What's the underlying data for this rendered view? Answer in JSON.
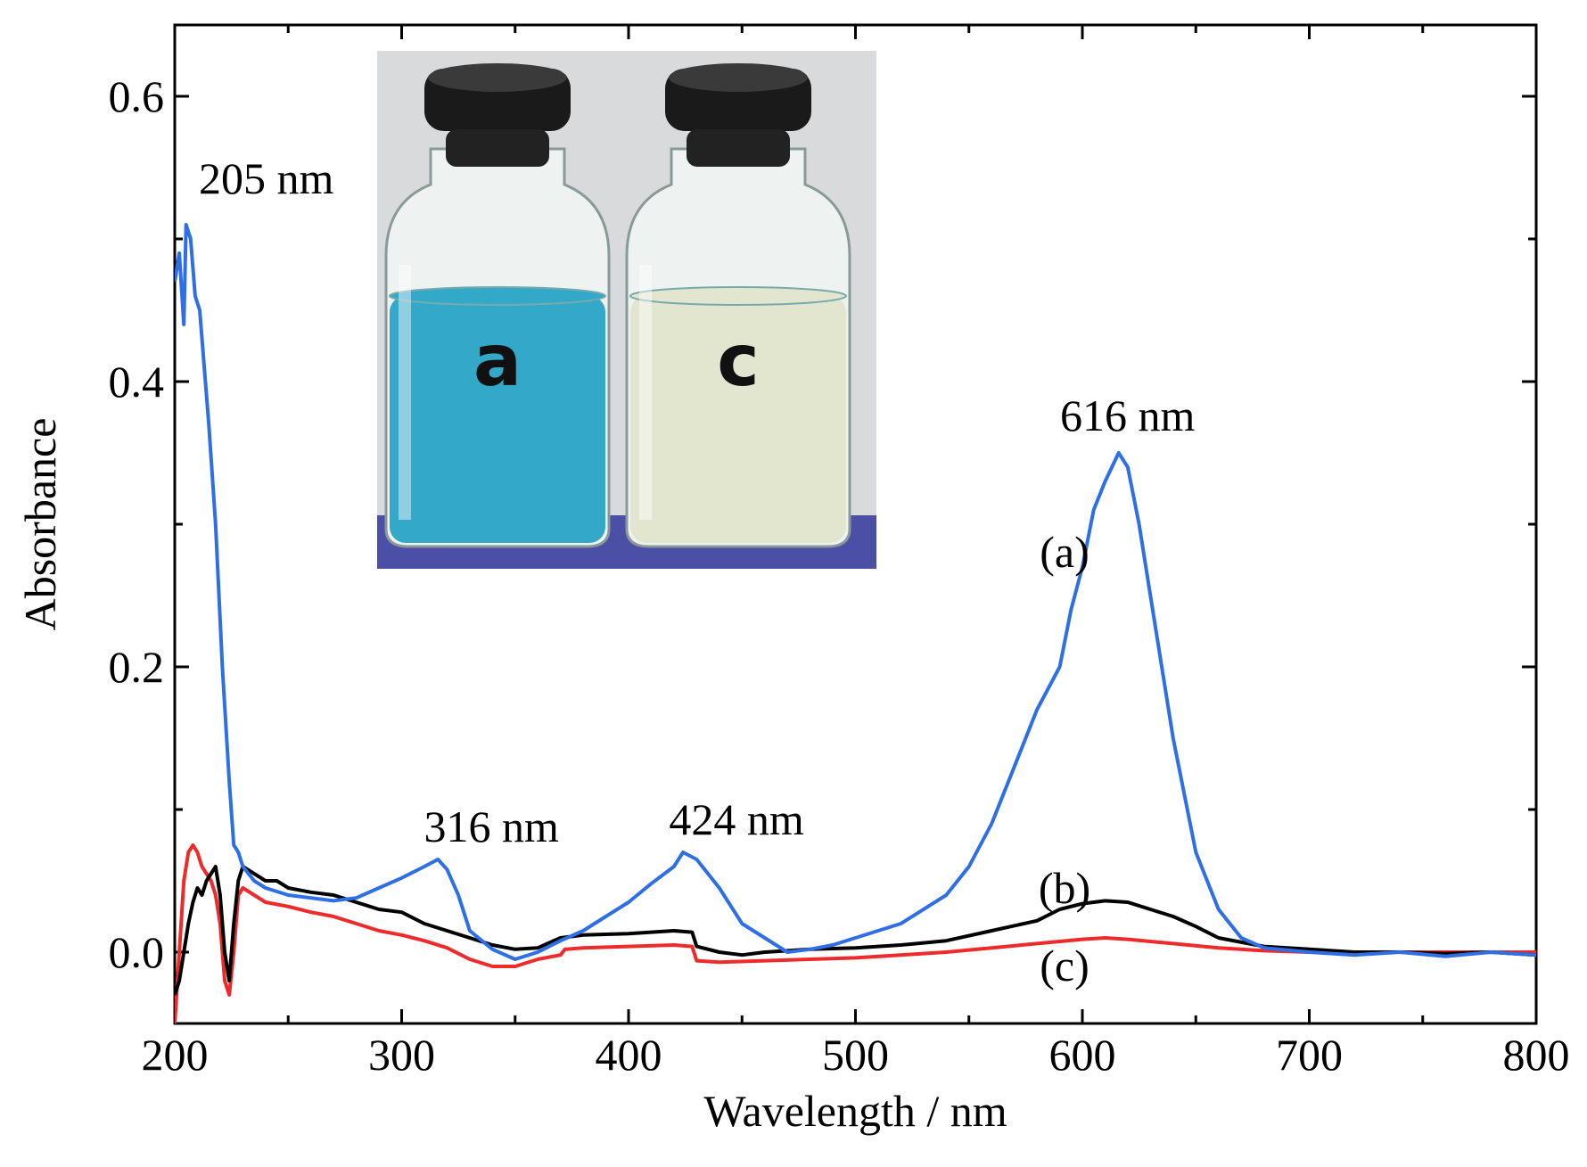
{
  "chart_data": {
    "type": "line",
    "xlabel": "Wavelength / nm",
    "ylabel": "Absorbance",
    "xlim": [
      200,
      800
    ],
    "ylim": [
      -0.05,
      0.65
    ],
    "xticks": [
      200,
      300,
      400,
      500,
      600,
      700,
      800
    ],
    "yticks": [
      0.0,
      0.2,
      0.4,
      0.6
    ],
    "xtick_labels": [
      "200",
      "300",
      "400",
      "500",
      "600",
      "700",
      "800"
    ],
    "ytick_labels": [
      "0.0",
      "0.2",
      "0.4",
      "0.6"
    ],
    "grid": false,
    "series": [
      {
        "name": "(a)",
        "color": "#2f6fe6",
        "x": [
          200,
          202,
          204,
          205,
          207,
          209,
          211,
          213,
          215,
          218,
          221,
          224,
          226,
          228,
          230,
          235,
          240,
          250,
          260,
          270,
          280,
          290,
          300,
          310,
          316,
          320,
          325,
          330,
          340,
          350,
          360,
          370,
          380,
          390,
          400,
          410,
          420,
          424,
          430,
          440,
          450,
          460,
          470,
          480,
          490,
          500,
          520,
          540,
          550,
          560,
          570,
          580,
          590,
          595,
          600,
          605,
          610,
          616,
          620,
          625,
          630,
          640,
          650,
          660,
          670,
          680,
          700,
          720,
          740,
          760,
          780,
          800
        ],
        "y": [
          0.47,
          0.49,
          0.44,
          0.51,
          0.5,
          0.46,
          0.45,
          0.41,
          0.37,
          0.3,
          0.2,
          0.12,
          0.075,
          0.07,
          0.06,
          0.05,
          0.045,
          0.04,
          0.038,
          0.036,
          0.038,
          0.045,
          0.052,
          0.06,
          0.065,
          0.058,
          0.04,
          0.015,
          0.002,
          -0.005,
          0.0,
          0.008,
          0.015,
          0.025,
          0.035,
          0.048,
          0.06,
          0.07,
          0.065,
          0.045,
          0.02,
          0.01,
          0.0,
          0.002,
          0.005,
          0.01,
          0.02,
          0.04,
          0.06,
          0.09,
          0.13,
          0.17,
          0.2,
          0.24,
          0.27,
          0.31,
          0.33,
          0.35,
          0.34,
          0.3,
          0.25,
          0.15,
          0.07,
          0.03,
          0.01,
          0.003,
          0.0,
          -0.002,
          0.0,
          -0.003,
          0.0,
          -0.002
        ]
      },
      {
        "name": "(b)",
        "color": "#000000",
        "x": [
          200,
          202,
          204,
          206,
          208,
          210,
          212,
          214,
          216,
          218,
          220,
          222,
          224,
          226,
          228,
          230,
          235,
          240,
          245,
          250,
          260,
          270,
          280,
          290,
          300,
          310,
          320,
          330,
          340,
          350,
          360,
          370,
          380,
          400,
          420,
          428,
          430,
          440,
          450,
          460,
          480,
          500,
          520,
          540,
          560,
          580,
          590,
          600,
          610,
          620,
          630,
          640,
          650,
          660,
          680,
          700,
          720,
          740,
          760,
          780,
          800
        ],
        "y": [
          -0.03,
          -0.02,
          0.0,
          0.02,
          0.035,
          0.045,
          0.04,
          0.05,
          0.055,
          0.06,
          0.04,
          0.0,
          -0.02,
          0.02,
          0.05,
          0.06,
          0.055,
          0.05,
          0.05,
          0.045,
          0.042,
          0.04,
          0.035,
          0.03,
          0.028,
          0.02,
          0.015,
          0.01,
          0.005,
          0.002,
          0.003,
          0.01,
          0.012,
          0.013,
          0.015,
          0.014,
          0.004,
          0.0,
          -0.002,
          0.0,
          0.002,
          0.003,
          0.005,
          0.008,
          0.015,
          0.022,
          0.03,
          0.034,
          0.036,
          0.035,
          0.03,
          0.025,
          0.018,
          0.01,
          0.004,
          0.002,
          0.0,
          0.0,
          -0.001,
          0.0,
          -0.002
        ]
      },
      {
        "name": "(c)",
        "color": "#ee2a2a",
        "x": [
          200,
          202,
          204,
          206,
          208,
          210,
          212,
          214,
          216,
          218,
          220,
          222,
          224,
          226,
          228,
          230,
          235,
          240,
          250,
          260,
          270,
          280,
          290,
          300,
          310,
          320,
          330,
          340,
          350,
          360,
          370,
          372,
          380,
          400,
          420,
          428,
          430,
          440,
          460,
          480,
          500,
          520,
          540,
          560,
          580,
          600,
          610,
          620,
          640,
          660,
          680,
          700,
          720,
          740,
          760,
          780,
          800
        ],
        "y": [
          -0.05,
          0.0,
          0.05,
          0.07,
          0.075,
          0.07,
          0.06,
          0.055,
          0.05,
          0.04,
          0.02,
          -0.02,
          -0.03,
          0.0,
          0.04,
          0.045,
          0.04,
          0.035,
          0.032,
          0.028,
          0.025,
          0.02,
          0.015,
          0.012,
          0.008,
          0.003,
          -0.005,
          -0.01,
          -0.01,
          -0.005,
          -0.002,
          0.002,
          0.003,
          0.004,
          0.005,
          0.004,
          -0.006,
          -0.007,
          -0.006,
          -0.005,
          -0.004,
          -0.002,
          0.0,
          0.003,
          0.006,
          0.009,
          0.01,
          0.009,
          0.006,
          0.003,
          0.001,
          0.0,
          0.0,
          0.0,
          0.0,
          0.0,
          0.0
        ]
      }
    ],
    "annotations": [
      {
        "text": "205 nm",
        "x": 205,
        "y": 0.51
      },
      {
        "text": "316 nm",
        "x": 316,
        "y": 0.065
      },
      {
        "text": "424 nm",
        "x": 424,
        "y": 0.07
      },
      {
        "text": "616 nm",
        "x": 616,
        "y": 0.35
      }
    ],
    "curve_labels": [
      {
        "text": "(a)",
        "x": 600,
        "y": 0.27
      },
      {
        "text": "(b)",
        "x": 600,
        "y": 0.05
      },
      {
        "text": "(c)",
        "x": 600,
        "y": -0.02
      }
    ],
    "inset": {
      "type": "photo",
      "labels": [
        "a",
        "c"
      ],
      "colors": {
        "background": "#d9dadc",
        "liquid_a": "#34a8c8",
        "liquid_c": "#e2e6cf",
        "cap": "#1a1a1a",
        "base": "#4b4fa6"
      }
    }
  }
}
